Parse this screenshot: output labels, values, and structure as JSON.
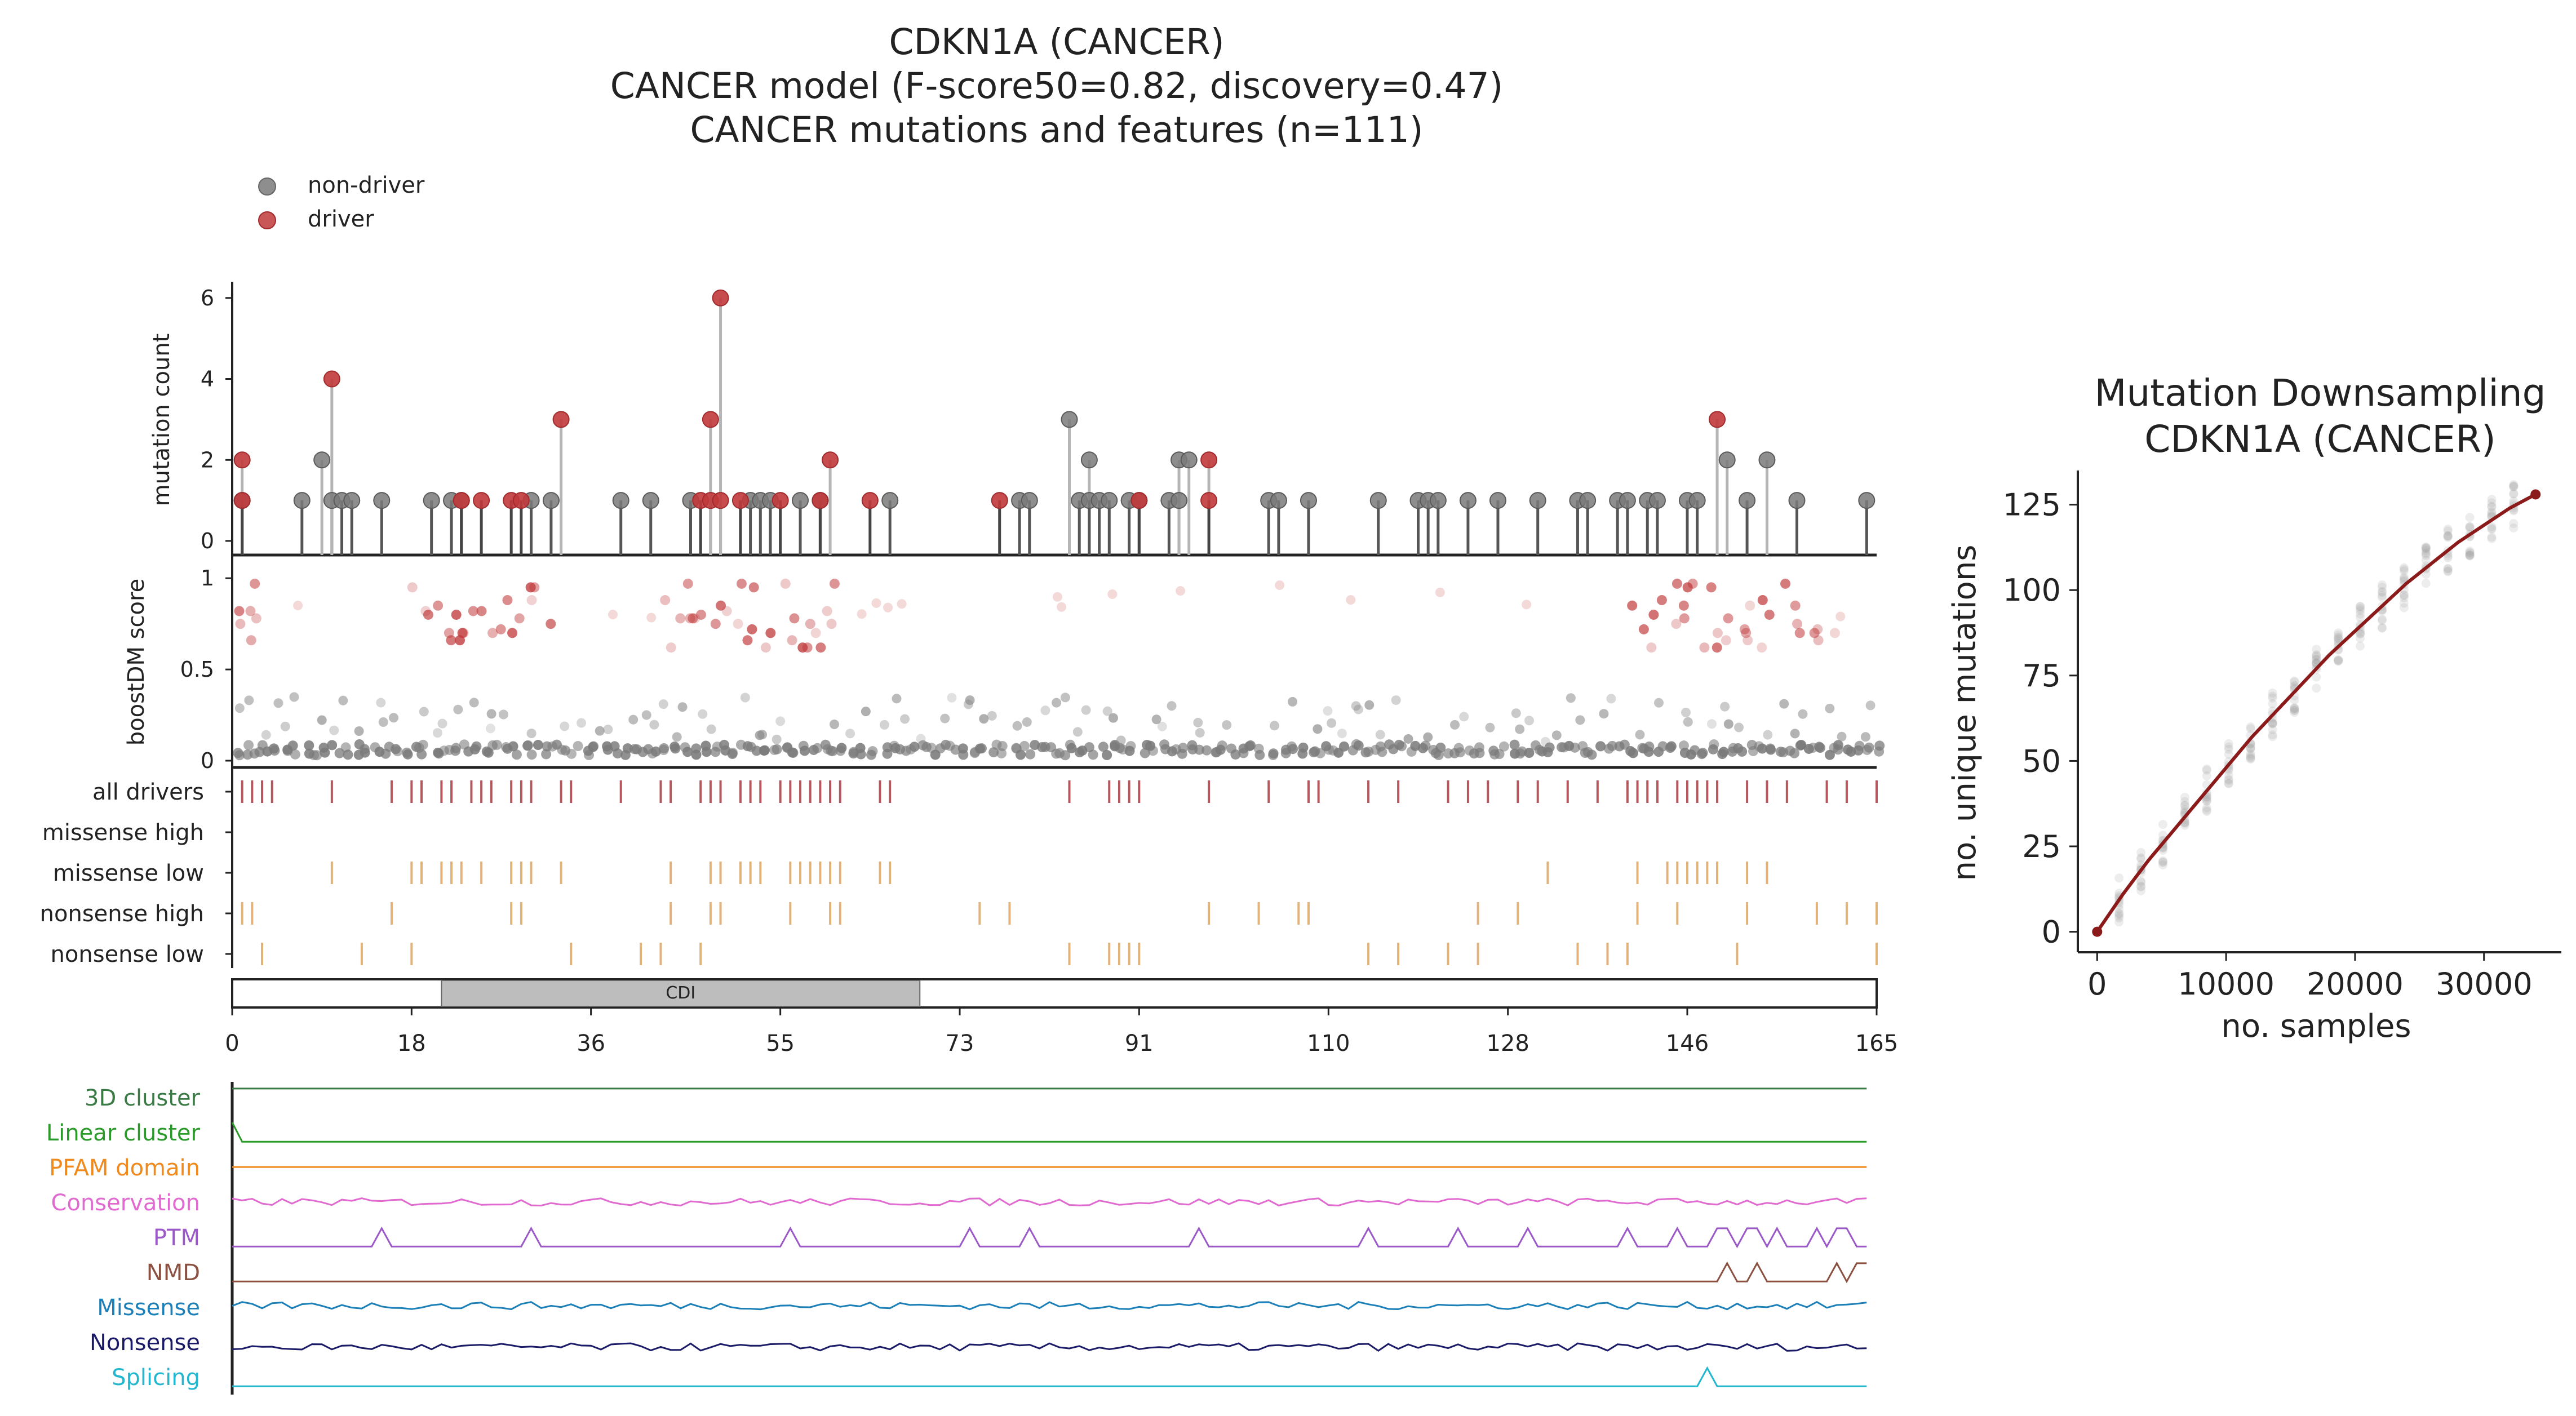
{
  "title": {
    "line1": "CDKN1A (CANCER)",
    "line2": "CANCER model (F-score50=0.82, discovery=0.47)",
    "line3": "CANCER mutations and features (n=111)"
  },
  "legend": {
    "items": [
      {
        "label": "non-driver",
        "color": "#7a7a7a"
      },
      {
        "label": "driver",
        "color": "#c0393b"
      }
    ],
    "placement": "top-left"
  },
  "colors": {
    "driver": "#c0393b",
    "non_driver": "#7a7a7a",
    "driver_tick": "#b5585e",
    "class_tick": "#e3b27a",
    "downsampling_line": "#8b1a1a"
  },
  "chart_data": [
    {
      "type": "scatter",
      "name": "lollipop",
      "ylabel": "mutation count",
      "yticks": [
        0,
        2,
        4,
        6
      ],
      "ylim": [
        0,
        6.4
      ],
      "xlim": [
        0,
        165
      ],
      "non_driver": [
        [
          1,
          1
        ],
        [
          7,
          1
        ],
        [
          9,
          2
        ],
        [
          10,
          1
        ],
        [
          11,
          1
        ],
        [
          12,
          1
        ],
        [
          15,
          1
        ],
        [
          20,
          1
        ],
        [
          22,
          1
        ],
        [
          23,
          1
        ],
        [
          30,
          1
        ],
        [
          32,
          1
        ],
        [
          39,
          1
        ],
        [
          42,
          1
        ],
        [
          46,
          1
        ],
        [
          52,
          1
        ],
        [
          53,
          1
        ],
        [
          54,
          1
        ],
        [
          57,
          1
        ],
        [
          59,
          1
        ],
        [
          66,
          1
        ],
        [
          79,
          1
        ],
        [
          80,
          1
        ],
        [
          84,
          3
        ],
        [
          85,
          1
        ],
        [
          86,
          2
        ],
        [
          86,
          1
        ],
        [
          87,
          1
        ],
        [
          88,
          1
        ],
        [
          90,
          1
        ],
        [
          91,
          1
        ],
        [
          94,
          1
        ],
        [
          95,
          1
        ],
        [
          95,
          2
        ],
        [
          96,
          2
        ],
        [
          104,
          1
        ],
        [
          105,
          1
        ],
        [
          108,
          1
        ],
        [
          115,
          1
        ],
        [
          119,
          1
        ],
        [
          120,
          1
        ],
        [
          121,
          1
        ],
        [
          124,
          1
        ],
        [
          127,
          1
        ],
        [
          131,
          1
        ],
        [
          135,
          1
        ],
        [
          136,
          1
        ],
        [
          139,
          1
        ],
        [
          140,
          1
        ],
        [
          142,
          1
        ],
        [
          143,
          1
        ],
        [
          146,
          1
        ],
        [
          147,
          1
        ],
        [
          150,
          2
        ],
        [
          152,
          1
        ],
        [
          154,
          2
        ],
        [
          157,
          1
        ],
        [
          164,
          1
        ]
      ],
      "driver": [
        [
          1,
          2
        ],
        [
          1,
          1
        ],
        [
          10,
          4
        ],
        [
          23,
          1
        ],
        [
          25,
          1
        ],
        [
          28,
          1
        ],
        [
          29,
          1
        ],
        [
          33,
          3
        ],
        [
          47,
          1
        ],
        [
          48,
          1
        ],
        [
          48,
          3
        ],
        [
          49,
          1
        ],
        [
          49,
          6
        ],
        [
          51,
          1
        ],
        [
          55,
          1
        ],
        [
          59,
          1
        ],
        [
          60,
          2
        ],
        [
          64,
          1
        ],
        [
          77,
          1
        ],
        [
          91,
          1
        ],
        [
          98,
          2
        ],
        [
          98,
          1
        ],
        [
          149,
          3
        ]
      ]
    },
    {
      "type": "scatter",
      "name": "boostdm",
      "ylabel": "boostDM score",
      "yticks": [
        0,
        0.5,
        1
      ],
      "ylim": [
        0,
        1.05
      ],
      "xlim": [
        0,
        165
      ],
      "driver_region_scores": [
        0.97,
        0.95,
        0.88,
        0.85,
        0.82,
        0.8,
        0.78,
        0.75,
        0.72,
        0.7,
        0.66,
        0.62
      ]
    },
    {
      "type": "heatmap",
      "name": "tracks",
      "rows": [
        {
          "label": "all drivers",
          "positions": [
            1,
            2,
            3,
            4,
            10,
            16,
            18,
            19,
            21,
            22,
            24,
            25,
            26,
            28,
            29,
            30,
            33,
            34,
            39,
            43,
            44,
            47,
            48,
            49,
            51,
            52,
            53,
            55,
            56,
            57,
            58,
            59,
            60,
            61,
            65,
            66,
            84,
            88,
            89,
            90,
            91,
            98,
            104,
            108,
            109,
            114,
            117,
            122,
            124,
            126,
            129,
            131,
            134,
            137,
            140,
            141,
            142,
            143,
            145,
            146,
            147,
            148,
            149,
            152,
            154,
            156,
            160,
            162,
            165
          ]
        },
        {
          "label": "missense high",
          "positions": []
        },
        {
          "label": "missense low",
          "positions": [
            10,
            18,
            19,
            21,
            22,
            23,
            25,
            28,
            29,
            30,
            33,
            44,
            48,
            49,
            51,
            52,
            53,
            56,
            57,
            58,
            59,
            60,
            61,
            65,
            66,
            132,
            141,
            144,
            145,
            146,
            147,
            148,
            149,
            152,
            154
          ]
        },
        {
          "label": "nonsense high",
          "positions": [
            1,
            2,
            16,
            28,
            29,
            44,
            48,
            49,
            56,
            60,
            61,
            75,
            78,
            98,
            103,
            107,
            108,
            125,
            129,
            141,
            145,
            152,
            159,
            162,
            165
          ]
        },
        {
          "label": "nonsense low",
          "positions": [
            3,
            13,
            18,
            34,
            41,
            43,
            47,
            84,
            88,
            89,
            90,
            91,
            114,
            117,
            122,
            125,
            135,
            138,
            140,
            151,
            165
          ]
        }
      ]
    },
    {
      "type": "bar",
      "name": "domain",
      "domains": [
        {
          "label": "CDI",
          "start": 21,
          "end": 69
        }
      ],
      "xticks": [
        0,
        18,
        36,
        55,
        73,
        91,
        110,
        128,
        146,
        165
      ],
      "xlim": [
        0,
        165
      ]
    },
    {
      "type": "line",
      "name": "features",
      "series": [
        {
          "name": "3D cluster",
          "color": "#3a7a45",
          "kind": "flat",
          "level": 0.95
        },
        {
          "name": "Linear cluster",
          "color": "#2a9a2a",
          "kind": "spike_start",
          "level": 0.1
        },
        {
          "name": "PFAM domain",
          "color": "#f08a1c",
          "kind": "flat",
          "level": 0.55
        },
        {
          "name": "Conservation",
          "color": "#e06ad0",
          "kind": "noise",
          "level": 0.55
        },
        {
          "name": "PTM",
          "color": "#9b59c8",
          "kind": "peaks",
          "level": 0.1,
          "peaks": [
            15,
            30,
            56,
            74,
            80,
            97,
            114,
            123,
            130,
            140,
            145,
            149,
            150,
            152,
            153,
            155,
            159,
            161,
            162
          ]
        },
        {
          "name": "NMD",
          "color": "#8a5040",
          "kind": "peaks",
          "level": 0.1,
          "peaks": [
            150,
            153,
            161,
            163,
            164
          ]
        },
        {
          "name": "Missense",
          "color": "#1b7fb8",
          "kind": "noise",
          "level": 0.6
        },
        {
          "name": "Nonsense",
          "color": "#1a1a66",
          "kind": "noise",
          "level": 0.3
        },
        {
          "name": "Splicing",
          "color": "#22b7cf",
          "kind": "peaks",
          "level": 0.1,
          "peaks": [
            148
          ]
        }
      ],
      "xlim": [
        0,
        165
      ]
    },
    {
      "type": "line",
      "name": "downsampling",
      "title": "Mutation Downsampling\nCDKN1A (CANCER)",
      "title_line1": "Mutation Downsampling",
      "title_line2": "CDKN1A (CANCER)",
      "xlabel": "no. samples",
      "ylabel": "no. unique mutations",
      "xticks": [
        0,
        10000,
        20000,
        30000
      ],
      "yticks": [
        0,
        25,
        50,
        75,
        100,
        125
      ],
      "xlim": [
        -1500,
        36000
      ],
      "ylim": [
        -6,
        135
      ],
      "x": [
        0,
        2000,
        4000,
        6000,
        8000,
        10000,
        12000,
        14000,
        16000,
        18000,
        20000,
        22000,
        24000,
        26000,
        28000,
        30000,
        32000,
        34000
      ],
      "y": [
        0,
        11,
        21,
        30,
        39,
        48,
        57,
        65,
        73,
        81,
        88,
        95,
        102,
        108,
        114,
        119,
        124,
        128
      ]
    }
  ]
}
